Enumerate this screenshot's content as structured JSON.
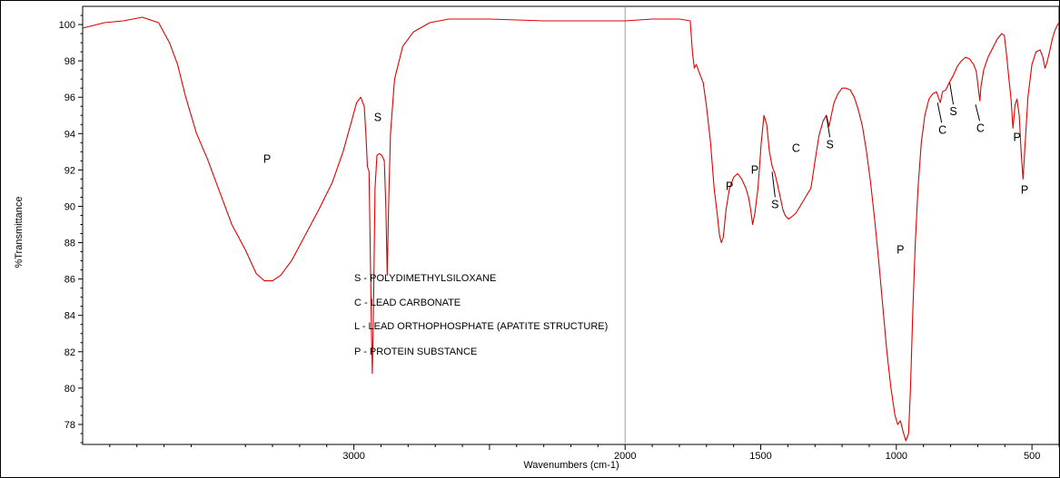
{
  "chart_data": {
    "type": "line",
    "title": "",
    "xlabel": "Wavenumbers (cm-1)",
    "ylabel": "%Transmittance",
    "xlim": [
      4000,
      400
    ],
    "ylim": [
      76.9,
      101.0
    ],
    "x_ticks": [
      {
        "value": 3000,
        "label": "3000"
      },
      {
        "value": 2500,
        "label": ""
      },
      {
        "value": 2000,
        "label": "2000"
      },
      {
        "value": 1500,
        "label": "1500"
      },
      {
        "value": 1000,
        "label": "1000"
      },
      {
        "value": 500,
        "label": "500"
      }
    ],
    "y_ticks": [
      {
        "value": 100,
        "label": "100"
      },
      {
        "value": 98,
        "label": "98"
      },
      {
        "value": 96,
        "label": "96"
      },
      {
        "value": 94,
        "label": "94"
      },
      {
        "value": 92,
        "label": "92"
      },
      {
        "value": 90,
        "label": "90"
      },
      {
        "value": 88,
        "label": "88"
      },
      {
        "value": 86,
        "label": "86"
      },
      {
        "value": 84,
        "label": "84"
      },
      {
        "value": 82,
        "label": "82"
      },
      {
        "value": 80,
        "label": "80"
      },
      {
        "value": 78,
        "label": "78"
      }
    ],
    "reference_line_x": 2000,
    "grid": false,
    "series": [
      {
        "color": "#e00000",
        "points": [
          [
            4000,
            99.8
          ],
          [
            3920,
            100.1
          ],
          [
            3850,
            100.2
          ],
          [
            3780,
            100.4
          ],
          [
            3720,
            100.1
          ],
          [
            3680,
            99.0
          ],
          [
            3650,
            97.8
          ],
          [
            3620,
            96.0
          ],
          [
            3580,
            94.0
          ],
          [
            3540,
            92.6
          ],
          [
            3500,
            91.0
          ],
          [
            3450,
            89.0
          ],
          [
            3400,
            87.6
          ],
          [
            3360,
            86.3
          ],
          [
            3330,
            85.9
          ],
          [
            3300,
            85.9
          ],
          [
            3270,
            86.2
          ],
          [
            3230,
            87.0
          ],
          [
            3180,
            88.4
          ],
          [
            3130,
            89.8
          ],
          [
            3080,
            91.3
          ],
          [
            3040,
            93.0
          ],
          [
            3010,
            94.6
          ],
          [
            2990,
            95.7
          ],
          [
            2975,
            96.0
          ],
          [
            2962,
            95.5
          ],
          [
            2955,
            93.8
          ],
          [
            2950,
            92.2
          ],
          [
            2944,
            91.9
          ],
          [
            2940,
            88.0
          ],
          [
            2935,
            83.0
          ],
          [
            2932,
            80.8
          ],
          [
            2928,
            84.0
          ],
          [
            2922,
            91.0
          ],
          [
            2915,
            92.8
          ],
          [
            2906,
            92.9
          ],
          [
            2897,
            92.8
          ],
          [
            2888,
            92.5
          ],
          [
            2882,
            90.0
          ],
          [
            2877,
            86.2
          ],
          [
            2872,
            90.0
          ],
          [
            2865,
            94.0
          ],
          [
            2850,
            97.0
          ],
          [
            2820,
            98.8
          ],
          [
            2780,
            99.6
          ],
          [
            2720,
            100.1
          ],
          [
            2650,
            100.3
          ],
          [
            2500,
            100.3
          ],
          [
            2300,
            100.2
          ],
          [
            2150,
            100.2
          ],
          [
            2000,
            100.2
          ],
          [
            1900,
            100.3
          ],
          [
            1800,
            100.3
          ],
          [
            1760,
            100.2
          ],
          [
            1752,
            98.5
          ],
          [
            1745,
            97.6
          ],
          [
            1738,
            97.8
          ],
          [
            1725,
            97.3
          ],
          [
            1712,
            96.8
          ],
          [
            1700,
            95.5
          ],
          [
            1685,
            93.5
          ],
          [
            1672,
            91.0
          ],
          [
            1660,
            89.5
          ],
          [
            1652,
            88.4
          ],
          [
            1645,
            88.0
          ],
          [
            1638,
            88.3
          ],
          [
            1628,
            89.8
          ],
          [
            1615,
            91.0
          ],
          [
            1600,
            91.6
          ],
          [
            1585,
            91.8
          ],
          [
            1570,
            91.5
          ],
          [
            1555,
            91.0
          ],
          [
            1545,
            90.5
          ],
          [
            1537,
            89.8
          ],
          [
            1530,
            89.0
          ],
          [
            1522,
            89.6
          ],
          [
            1510,
            91.0
          ],
          [
            1498,
            93.5
          ],
          [
            1488,
            95.0
          ],
          [
            1478,
            94.5
          ],
          [
            1468,
            93.0
          ],
          [
            1458,
            92.2
          ],
          [
            1448,
            91.8
          ],
          [
            1438,
            91.2
          ],
          [
            1428,
            90.5
          ],
          [
            1418,
            89.8
          ],
          [
            1410,
            89.5
          ],
          [
            1398,
            89.3
          ],
          [
            1388,
            89.4
          ],
          [
            1372,
            89.6
          ],
          [
            1355,
            90.0
          ],
          [
            1335,
            90.5
          ],
          [
            1315,
            91.0
          ],
          [
            1300,
            92.5
          ],
          [
            1285,
            93.9
          ],
          [
            1270,
            94.7
          ],
          [
            1258,
            95.0
          ],
          [
            1248,
            94.4
          ],
          [
            1240,
            95.0
          ],
          [
            1230,
            95.7
          ],
          [
            1215,
            96.2
          ],
          [
            1200,
            96.5
          ],
          [
            1185,
            96.5
          ],
          [
            1170,
            96.4
          ],
          [
            1155,
            96.0
          ],
          [
            1140,
            95.3
          ],
          [
            1125,
            94.4
          ],
          [
            1110,
            93.0
          ],
          [
            1095,
            91.3
          ],
          [
            1080,
            89.3
          ],
          [
            1065,
            87.0
          ],
          [
            1050,
            84.5
          ],
          [
            1035,
            82.0
          ],
          [
            1020,
            80.0
          ],
          [
            1005,
            78.5
          ],
          [
            995,
            78.0
          ],
          [
            985,
            78.2
          ],
          [
            975,
            77.6
          ],
          [
            965,
            77.1
          ],
          [
            955,
            77.5
          ],
          [
            948,
            80.0
          ],
          [
            940,
            84.0
          ],
          [
            930,
            88.0
          ],
          [
            920,
            91.0
          ],
          [
            908,
            93.5
          ],
          [
            895,
            95.0
          ],
          [
            880,
            95.9
          ],
          [
            865,
            96.2
          ],
          [
            852,
            96.3
          ],
          [
            845,
            96.0
          ],
          [
            838,
            95.7
          ],
          [
            830,
            96.3
          ],
          [
            818,
            96.4
          ],
          [
            805,
            96.8
          ],
          [
            790,
            97.2
          ],
          [
            775,
            97.7
          ],
          [
            760,
            98.0
          ],
          [
            745,
            98.2
          ],
          [
            730,
            98.1
          ],
          [
            715,
            97.8
          ],
          [
            705,
            97.4
          ],
          [
            697,
            96.4
          ],
          [
            692,
            95.8
          ],
          [
            688,
            96.6
          ],
          [
            678,
            97.5
          ],
          [
            662,
            98.2
          ],
          [
            645,
            98.7
          ],
          [
            628,
            99.2
          ],
          [
            612,
            99.5
          ],
          [
            602,
            99.4
          ],
          [
            595,
            98.5
          ],
          [
            585,
            97.0
          ],
          [
            577,
            95.9
          ],
          [
            570,
            94.3
          ],
          [
            562,
            95.6
          ],
          [
            555,
            95.9
          ],
          [
            547,
            95.0
          ],
          [
            540,
            93.0
          ],
          [
            533,
            91.5
          ],
          [
            525,
            93.5
          ],
          [
            515,
            96.0
          ],
          [
            500,
            97.8
          ],
          [
            485,
            98.5
          ],
          [
            470,
            98.6
          ],
          [
            460,
            98.2
          ],
          [
            452,
            97.6
          ],
          [
            445,
            97.9
          ],
          [
            435,
            98.5
          ],
          [
            425,
            99.2
          ],
          [
            415,
            99.7
          ],
          [
            405,
            100.0
          ],
          [
            400,
            100.1
          ]
        ]
      }
    ],
    "annotations": [
      {
        "text": "P",
        "x": 3320,
        "y": 92.4
      },
      {
        "text": "S",
        "x": 2912,
        "y": 94.7
      },
      {
        "text": "P",
        "x": 1615,
        "y": 90.9
      },
      {
        "text": "P",
        "x": 1522,
        "y": 91.8
      },
      {
        "text": "S",
        "x": 1447,
        "y": 89.9
      },
      {
        "text": "C",
        "x": 1370,
        "y": 93.0
      },
      {
        "text": "S",
        "x": 1245,
        "y": 93.2
      },
      {
        "text": "P",
        "x": 985,
        "y": 87.4
      },
      {
        "text": "C",
        "x": 830,
        "y": 94.0
      },
      {
        "text": "S",
        "x": 790,
        "y": 95.0
      },
      {
        "text": "C",
        "x": 690,
        "y": 94.1
      },
      {
        "text": "P",
        "x": 555,
        "y": 93.6
      },
      {
        "text": "P",
        "x": 527,
        "y": 90.7
      }
    ],
    "callout_lines": [
      {
        "x1": 1447,
        "y1": 90.5,
        "x2": 1458,
        "y2": 91.9
      },
      {
        "x1": 1245,
        "y1": 93.8,
        "x2": 1258,
        "y2": 95.0
      },
      {
        "x1": 833,
        "y1": 94.6,
        "x2": 848,
        "y2": 95.7
      },
      {
        "x1": 790,
        "y1": 95.6,
        "x2": 803,
        "y2": 96.8
      },
      {
        "x1": 693,
        "y1": 94.7,
        "x2": 708,
        "y2": 95.6
      }
    ],
    "legend_lines": [
      "S - POLYDIMETHYLSILOXANE",
      "C - LEAD CARBONATE",
      "L -  LEAD ORTHOPHOSPHATE (APATITE STRUCTURE)",
      "P - PROTEIN SUBSTANCE"
    ]
  }
}
